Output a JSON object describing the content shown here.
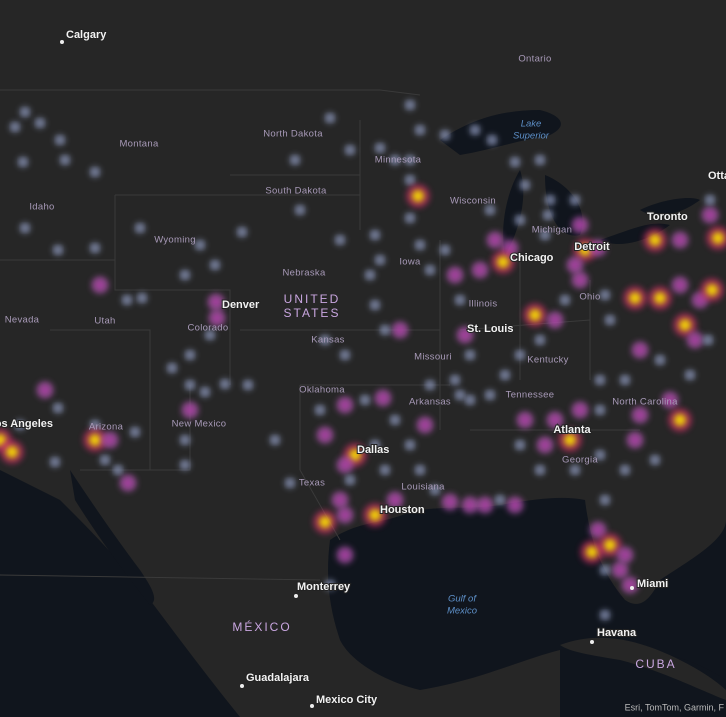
{
  "map": {
    "cities": [
      "Calgary",
      "Toronto",
      "Ottawa",
      "Detroit",
      "Chicago",
      "Denver",
      "St. Louis",
      "Los Angeles",
      "Dallas",
      "Atlanta",
      "Houston",
      "Monterrey",
      "Miami",
      "Havana",
      "Guadalajara",
      "Mexico City"
    ],
    "regions": [
      "Ontario",
      "North Dakota",
      "Montana",
      "Minnesota",
      "South Dakota",
      "Idaho",
      "Wyoming",
      "Wisconsin",
      "Michigan",
      "Nebraska",
      "Iowa",
      "Nevada",
      "Utah",
      "Colorado",
      "Illinois",
      "Ohio",
      "Kansas",
      "Missouri",
      "Kentucky",
      "Oklahoma",
      "Arkansas",
      "Tennessee",
      "North Carolina",
      "Arizona",
      "New Mexico",
      "Georgia",
      "Texas",
      "Louisiana"
    ],
    "countries": [
      "UNITED",
      "STATES",
      "MÉXICO",
      "CUBA"
    ],
    "water": [
      "Lake",
      "Superior",
      "Gulf of",
      "Mexico"
    ],
    "attribution": "Esri, TomTom, Garmin, F"
  }
}
